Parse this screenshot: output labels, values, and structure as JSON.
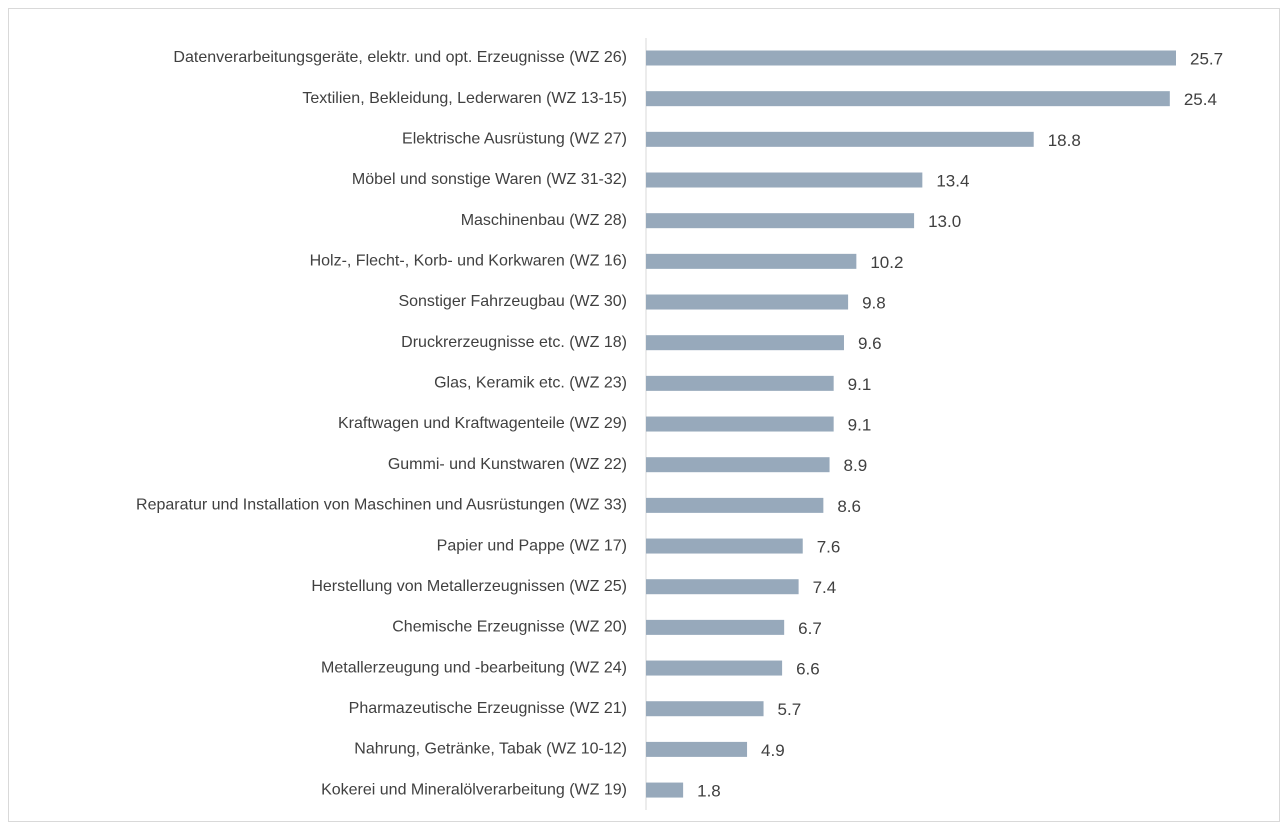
{
  "chart_data": {
    "type": "bar",
    "orientation": "horizontal",
    "color": "#97a9bb",
    "categories": [
      "Datenverarbeitungsgeräte, elektr. und opt. Erzeugnisse (WZ 26)",
      "Textilien, Bekleidung, Lederwaren (WZ 13-15)",
      "Elektrische Ausrüstung (WZ 27)",
      "Möbel und sonstige Waren (WZ 31-32)",
      "Maschinenbau (WZ 28)",
      "Holz-, Flecht-, Korb- und Korkwaren (WZ 16)",
      "Sonstiger Fahrzeugbau (WZ 30)",
      "Druckrerzeugnisse etc. (WZ 18)",
      "Glas, Keramik etc. (WZ 23)",
      "Kraftwagen und Kraftwagenteile (WZ 29)",
      "Gummi- und Kunstwaren (WZ 22)",
      "Reparatur und Installation von Maschinen und Ausrüstungen (WZ 33)",
      "Papier und Pappe (WZ 17)",
      "Herstellung von Metallerzeugnissen (WZ 25)",
      "Chemische Erzeugnisse (WZ 20)",
      "Metallerzeugung und -bearbeitung (WZ 24)",
      "Pharmazeutische Erzeugnisse (WZ 21)",
      "Nahrung, Getränke, Tabak (WZ 10-12)",
      "Kokerei und Mineralölverarbeitung (WZ 19)"
    ],
    "values": [
      25.7,
      25.4,
      18.8,
      13.4,
      13.0,
      10.2,
      9.8,
      9.6,
      9.1,
      9.1,
      8.9,
      8.6,
      7.6,
      7.4,
      6.7,
      6.6,
      5.7,
      4.9,
      1.8
    ],
    "value_labels": [
      "25.7",
      "25.4",
      "18.8",
      "13.4",
      "13.0",
      "10.2",
      "9.8",
      "9.6",
      "9.1",
      "9.1",
      "8.9",
      "8.6",
      "7.6",
      "7.4",
      "6.7",
      "6.6",
      "5.7",
      "4.9",
      "1.8"
    ]
  }
}
